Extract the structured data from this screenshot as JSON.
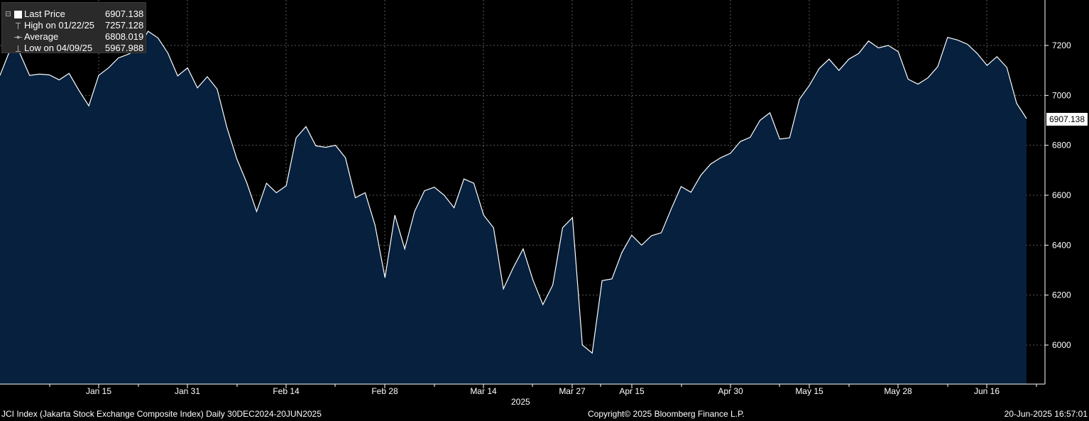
{
  "legend": {
    "last_price_label": "Last Price",
    "last_price_value": "6907.138",
    "high_label": "High on 01/22/25",
    "high_value": "7257.128",
    "average_label": "Average",
    "average_value": "6808.019",
    "low_label": "Low on 04/09/25",
    "low_value": "5967.988"
  },
  "footer": {
    "index_desc": "JCI Index (Jakarta Stock Exchange Composite Index)  Daily 30DEC2024-20JUN2025",
    "copyright": "Copyright© 2025 Bloomberg Finance L.P.",
    "timestamp": "20-Jun-2025 16:57:01"
  },
  "colors": {
    "background": "#000000",
    "area_fill": "#06203e",
    "line": "#ffffff",
    "grid": "#5a5a5a"
  },
  "chart_data": {
    "type": "area",
    "x_axis_label": "2025",
    "x_ticks": [
      "Jan 15",
      "Jan 31",
      "Feb 14",
      "Feb 28",
      "Mar 14",
      "Mar 27",
      "Apr 15",
      "Apr 30",
      "May 15",
      "May 28",
      "Jun 16"
    ],
    "y_ticks": [
      6000,
      6200,
      6400,
      6600,
      6800,
      7000,
      7200
    ],
    "ylim": [
      5850,
      7350
    ],
    "grid": true,
    "last_value_tag": "6907.138",
    "series": [
      {
        "values": [
          7080,
          7180,
          7170,
          7080,
          7085,
          7082,
          7062,
          7088,
          7020,
          6958,
          7080,
          7110,
          7150,
          7165,
          7185,
          7257,
          7230,
          7170,
          7078,
          7110,
          7030,
          7075,
          7025,
          6870,
          6745,
          6650,
          6535,
          6648,
          6610,
          6638,
          6830,
          6875,
          6798,
          6792,
          6800,
          6750,
          6590,
          6610,
          6480,
          6270,
          6520,
          6385,
          6535,
          6618,
          6632,
          6600,
          6550,
          6665,
          6648,
          6520,
          6470,
          6225,
          6310,
          6385,
          6260,
          6162,
          6240,
          6470,
          6510,
          6000,
          5968,
          6258,
          6265,
          6370,
          6440,
          6400,
          6438,
          6450,
          6545,
          6635,
          6612,
          6680,
          6725,
          6750,
          6768,
          6815,
          6832,
          6900,
          6930,
          6825,
          6830,
          6985,
          7040,
          7108,
          7145,
          7100,
          7145,
          7168,
          7218,
          7190,
          7200,
          7175,
          7065,
          7045,
          7070,
          7115,
          7232,
          7222,
          7205,
          7168,
          7120,
          7155,
          7112,
          6968,
          6907.138
        ]
      }
    ]
  }
}
